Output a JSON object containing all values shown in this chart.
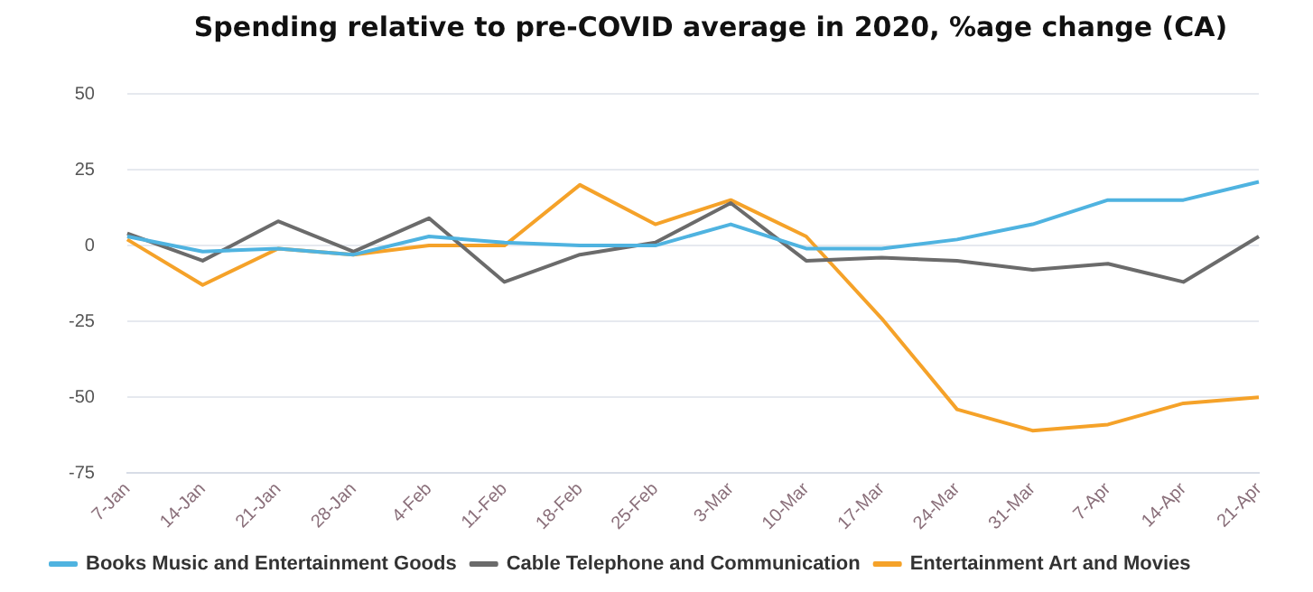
{
  "chart_data": {
    "type": "line",
    "title": "Spending relative to pre-COVID average in 2020, %age change (CA)",
    "categories": [
      "7-Jan",
      "14-Jan",
      "21-Jan",
      "28-Jan",
      "4-Feb",
      "11-Feb",
      "18-Feb",
      "25-Feb",
      "3-Mar",
      "10-Mar",
      "17-Mar",
      "24-Mar",
      "31-Mar",
      "7-Apr",
      "14-Apr",
      "21-Apr"
    ],
    "series": [
      {
        "name": "Books Music and Entertainment Goods",
        "color": "#4fb3e0",
        "values": [
          3,
          -2,
          -1,
          -3,
          3,
          1,
          0,
          0,
          7,
          -1,
          -1,
          2,
          7,
          15,
          15,
          21
        ]
      },
      {
        "name": "Cable Telephone and Communication",
        "color": "#6b6b6b",
        "values": [
          4,
          -5,
          8,
          -2,
          9,
          -12,
          -3,
          1,
          14,
          -5,
          -4,
          -5,
          -8,
          -6,
          -12,
          3
        ]
      },
      {
        "name": "Entertainment Art and Movies",
        "color": "#f5a229",
        "values": [
          2,
          -13,
          -1,
          -3,
          0,
          0,
          20,
          7,
          15,
          3,
          -24,
          -54,
          -61,
          -59,
          -52,
          -50
        ]
      }
    ],
    "ylim": [
      -75,
      50
    ],
    "yticks": [
      -75,
      -50,
      -25,
      0,
      25,
      50
    ],
    "grid": "y",
    "legend": "bottom",
    "marker": "none",
    "line_style": "solid"
  }
}
